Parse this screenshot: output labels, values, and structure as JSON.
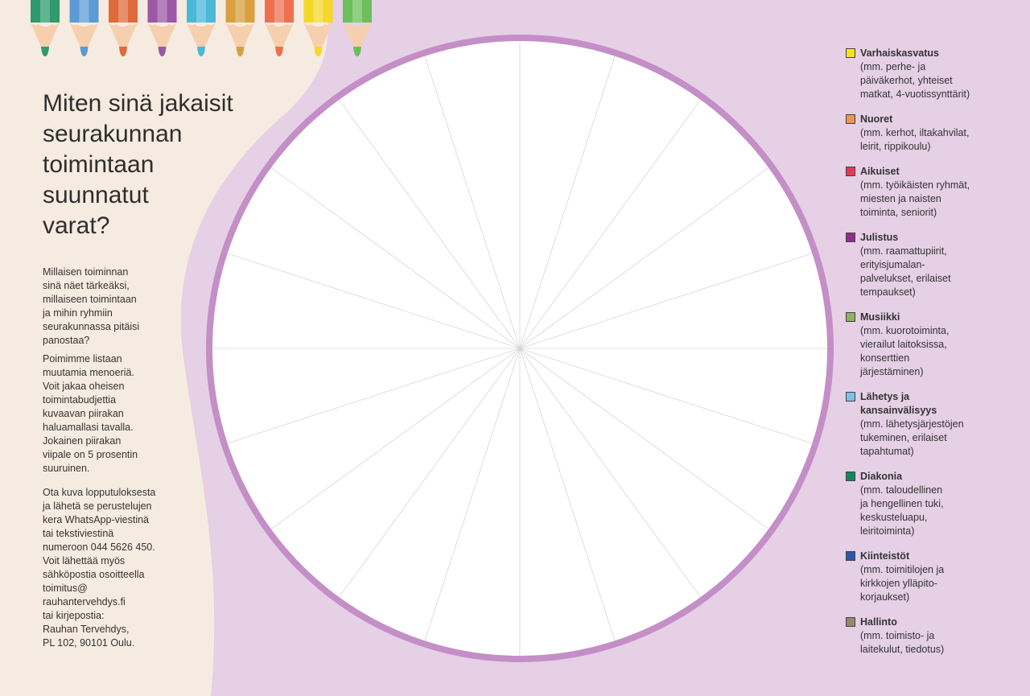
{
  "title": {
    "lines": [
      "Miten sinä jakaisit",
      "seurakunnan",
      "toimintaan",
      "suunnatut",
      "varat?"
    ]
  },
  "paragraphs": [
    [
      "Millaisen toiminnan",
      "sinä näet tärkeäksi,",
      "millaiseen toimintaan",
      "ja mihin ryhmiin",
      "seurakunnassa pitäisi",
      "panostaa?"
    ],
    [
      "Poimimme listaan",
      "muutamia menoeriä.",
      "Voit jakaa oheisen",
      "toimintabudjettia",
      "kuvaavan piirakan",
      "haluamallasi tavalla.",
      "Jokainen piirakan",
      "viipale on 5 prosentin",
      "suuruinen."
    ],
    [
      "Ota kuva lopputuloksesta",
      "ja lähetä se perustelujen",
      "kera WhatsApp-viestinä",
      "tai tekstiviestinä",
      "numeroon 044 5626 450.",
      "Voit lähettää myös",
      "sähköpostia osoitteella",
      "toimitus@",
      "rauhantervehdys.fi",
      "tai kirjepostia:",
      "Rauhan Tervehdys,",
      "PL 102, 90101 Oulu."
    ]
  ],
  "legend": [
    {
      "name": [
        "Varhaiskasvatus"
      ],
      "color": "#f7e11c",
      "description": [
        "(mm. perhe- ja",
        "päiväkerhot, yhteiset",
        "matkat, 4-vuotissynttärit)"
      ]
    },
    {
      "name": [
        "Nuoret"
      ],
      "color": "#ec9455",
      "description": [
        "(mm. kerhot, iltakahvilat,",
        "leirit, rippikoulu)"
      ]
    },
    {
      "name": [
        "Aikuiset"
      ],
      "color": "#e23a55",
      "description": [
        "(mm. työikäisten ryhmät,",
        "miesten ja naisten",
        "toiminta, seniorit)"
      ]
    },
    {
      "name": [
        "Julistus"
      ],
      "color": "#962c8c",
      "description": [
        "(mm. raamattupiirit,",
        "erityisjumalan-",
        "palvelukset, erilaiset",
        "tempaukset)"
      ]
    },
    {
      "name": [
        "Musiikki"
      ],
      "color": "#8fb05e",
      "description": [
        "(mm. kuorotoiminta,",
        "vierailut laitoksissa,",
        "konserttien",
        "järjestäminen)"
      ]
    },
    {
      "name": [
        "Lähetys ja",
        "kansainvälisyys"
      ],
      "color": "#7fc0e6",
      "description": [
        "(mm. lähetysjärjestöjen",
        "tukeminen, erilaiset",
        "tapahtumat)"
      ]
    },
    {
      "name": [
        "Diakonia"
      ],
      "color": "#16875a",
      "description": [
        "(mm. taloudellinen",
        "ja hengellinen tuki,",
        "keskusteluapu,",
        "leiritoiminta)"
      ]
    },
    {
      "name": [
        "Kiinteistöt"
      ],
      "color": "#2f55a4",
      "description": [
        "(mm. toimitilojen ja",
        "kirkkojen ylläpito-",
        "korjaukset)"
      ]
    },
    {
      "name": [
        "Hallinto"
      ],
      "color": "#9a876b",
      "description": [
        "(mm. toimisto- ja",
        "laitekulut, tiedotus)"
      ]
    }
  ]
}
